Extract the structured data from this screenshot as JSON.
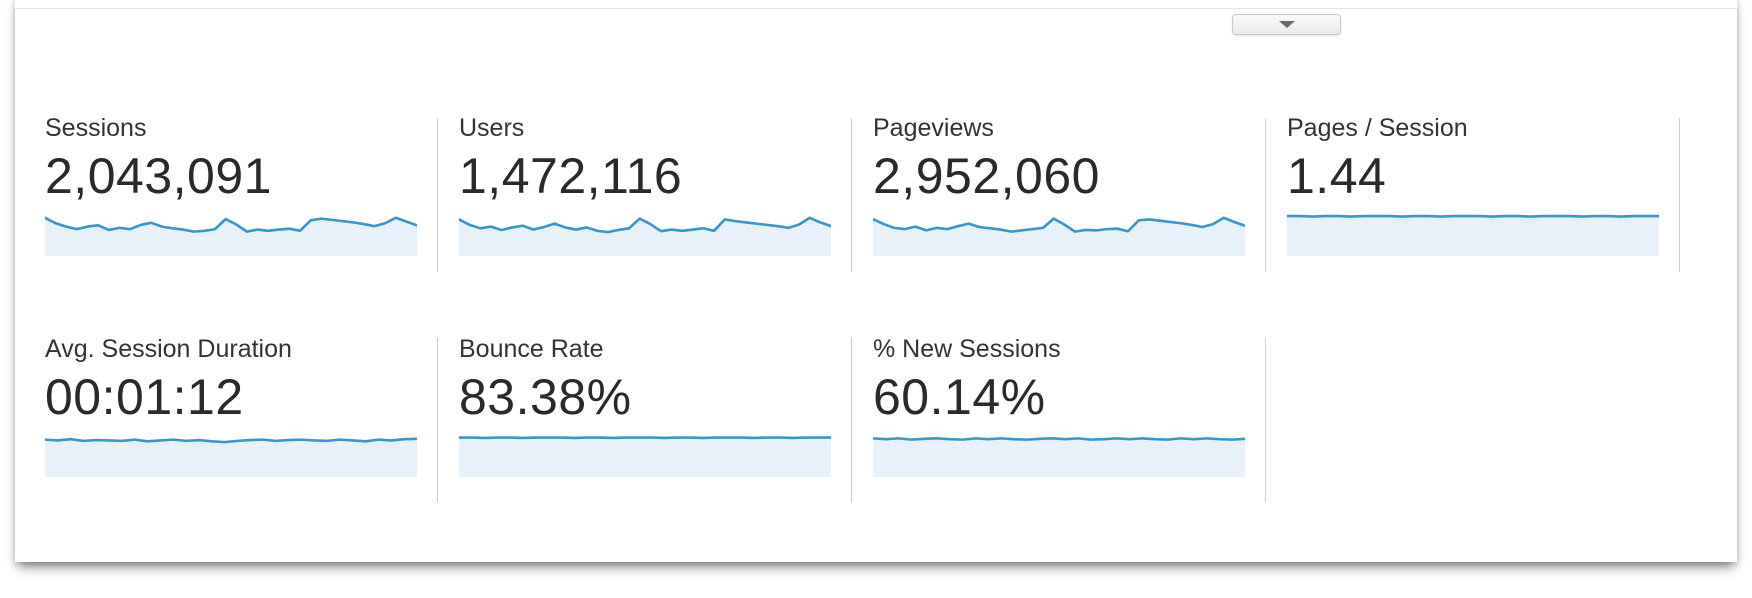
{
  "ui": {
    "collapse_button": {
      "icon": "chevron-down",
      "tooltip_glyph": "▼"
    }
  },
  "colors": {
    "spark_line": "#3a94cf",
    "spark_fill": "#e8f1fa",
    "divider": "#cccccc",
    "label_text": "#333333",
    "value_text": "#2a2a2a"
  },
  "chart_data": [
    {
      "type": "area",
      "metric": "Sessions",
      "value": "2,043,091",
      "x": "time period (unlabeled sparkline, ~36 intervals)",
      "y_normalized_depth": [
        9,
        22,
        30,
        36,
        30,
        27,
        38,
        33,
        36,
        26,
        21,
        30,
        34,
        37,
        42,
        40,
        36,
        12,
        25,
        42,
        37,
        40,
        37,
        35,
        40,
        15,
        11,
        14,
        17,
        20,
        24,
        29,
        22,
        9,
        18,
        27
      ]
    },
    {
      "type": "area",
      "metric": "Users",
      "value": "1,472,116",
      "x": "time period (unlabeled sparkline, ~36 intervals)",
      "y_normalized_depth": [
        13,
        26,
        34,
        30,
        38,
        32,
        28,
        37,
        31,
        23,
        32,
        37,
        32,
        40,
        43,
        38,
        34,
        11,
        24,
        41,
        37,
        40,
        37,
        34,
        40,
        13,
        17,
        20,
        23,
        26,
        29,
        33,
        25,
        9,
        20,
        29
      ]
    },
    {
      "type": "area",
      "metric": "Pageviews",
      "value": "2,952,060",
      "x": "time period (unlabeled sparkline, ~36 intervals)",
      "y_normalized_depth": [
        12,
        24,
        33,
        36,
        30,
        39,
        33,
        36,
        29,
        23,
        31,
        34,
        37,
        42,
        39,
        36,
        33,
        11,
        25,
        42,
        38,
        39,
        36,
        35,
        41,
        15,
        13,
        16,
        19,
        22,
        26,
        31,
        24,
        9,
        19,
        28
      ]
    },
    {
      "type": "area",
      "metric": "Pages / Session",
      "value": "1.44",
      "x": "time period (unlabeled flat sparkline)",
      "y_normalized_depth": [
        5,
        5,
        6,
        5,
        5,
        6,
        5,
        5,
        5,
        6,
        5,
        5,
        6,
        5,
        5,
        5,
        6,
        5,
        5,
        6,
        5,
        5,
        5,
        6,
        5,
        5,
        6,
        5,
        5,
        5
      ]
    },
    {
      "type": "area",
      "metric": "Avg. Session Duration",
      "value": "00:01:12",
      "x": "time period (unlabeled near-flat sparkline)",
      "y_normalized_depth": [
        11,
        13,
        10,
        14,
        12,
        13,
        14,
        11,
        15,
        13,
        11,
        14,
        12,
        15,
        17,
        14,
        12,
        11,
        14,
        12,
        11,
        13,
        14,
        11,
        13,
        15,
        11,
        13,
        10,
        9
      ]
    },
    {
      "type": "area",
      "metric": "Bounce Rate",
      "value": "83.38%",
      "x": "time period (unlabeled flat sparkline)",
      "y_normalized_depth": [
        6,
        6,
        7,
        6,
        6,
        7,
        6,
        6,
        6,
        7,
        6,
        6,
        7,
        6,
        6,
        6,
        7,
        6,
        6,
        7,
        6,
        6,
        6,
        7,
        6,
        6,
        7,
        6,
        6,
        6
      ]
    },
    {
      "type": "area",
      "metric": "% New Sessions",
      "value": "60.14%",
      "x": "time period (unlabeled near-flat sparkline)",
      "y_normalized_depth": [
        8,
        10,
        8,
        11,
        9,
        8,
        10,
        11,
        8,
        10,
        8,
        10,
        11,
        9,
        8,
        10,
        8,
        11,
        10,
        8,
        10,
        8,
        10,
        11,
        8,
        10,
        8,
        10,
        11,
        9
      ]
    }
  ]
}
